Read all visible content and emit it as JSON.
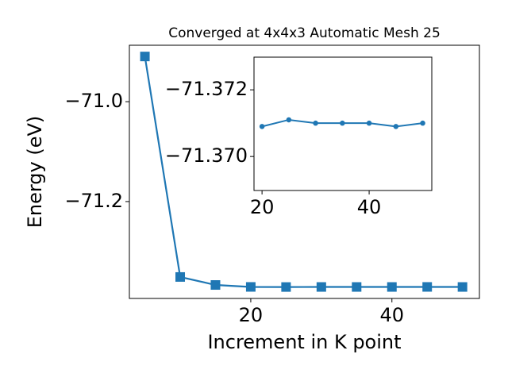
{
  "chart_data": [
    {
      "type": "line",
      "title": "Converged at 4x4x3 Automatic Mesh 25",
      "x_label": "Increment in K point",
      "y_label": "Energy (eV)",
      "x": [
        5,
        10,
        15,
        20,
        25,
        30,
        35,
        40,
        45,
        50
      ],
      "series": [
        {
          "color": "#1f77b4",
          "marker": "square",
          "values": [
            -70.9095,
            -71.351,
            -71.367,
            -71.3709,
            -71.3711,
            -71.371,
            -71.371,
            -71.371,
            -71.3709,
            -71.371
          ]
        }
      ],
      "xlim": [
        2.8,
        52.4
      ],
      "xticks": [
        20,
        40
      ],
      "ylim": [
        -71.394,
        -70.887
      ],
      "yticks": [
        {
          "value": -71.2,
          "label": "−71.2"
        },
        {
          "value": -71.0,
          "label": "−71.0"
        }
      ]
    },
    {
      "type": "line",
      "x": [
        20,
        25,
        30,
        35,
        40,
        45,
        50
      ],
      "series": [
        {
          "color": "#1f77b4",
          "marker": "circle",
          "values": [
            -71.3709,
            -71.3711,
            -71.371,
            -71.371,
            -71.371,
            -71.3709,
            -71.371
          ]
        }
      ],
      "xlim": [
        18.5,
        51.7
      ],
      "xticks": [
        20,
        40
      ],
      "ylim": [
        -71.36898,
        -71.37298
      ],
      "yticks": [
        {
          "value": -71.37,
          "label": "−71.370"
        },
        {
          "value": -71.372,
          "label": "−71.372"
        }
      ]
    }
  ]
}
